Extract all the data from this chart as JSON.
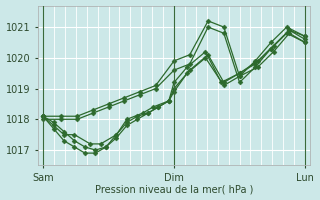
{
  "title": "",
  "xlabel": "Pression niveau de la mer( hPa )",
  "ylabel": "",
  "bg_color": "#cce8e8",
  "plot_bg_color": "#cce8e8",
  "grid_color": "#ffffff",
  "line_color": "#2d6a2d",
  "marker_color": "#2d6a2d",
  "ylim": [
    1016.5,
    1021.7
  ],
  "yticks": [
    1017,
    1018,
    1019,
    1020,
    1021
  ],
  "xtick_labels": [
    "Sam",
    "Dim",
    "Lun"
  ],
  "xtick_positions": [
    0.0,
    0.5,
    1.0
  ],
  "vline_positions": [
    0.0,
    0.5,
    1.0
  ],
  "series": [
    {
      "x": [
        0.0,
        0.07,
        0.13,
        0.19,
        0.25,
        0.31,
        0.37,
        0.43,
        0.5,
        0.56,
        0.63,
        0.69,
        0.75,
        0.81,
        0.87,
        0.93,
        1.0
      ],
      "y": [
        1018.1,
        1018.1,
        1018.1,
        1018.3,
        1018.5,
        1018.7,
        1018.9,
        1019.1,
        1019.9,
        1020.1,
        1021.2,
        1021.0,
        1019.4,
        1019.9,
        1020.5,
        1021.0,
        1020.7
      ]
    },
    {
      "x": [
        0.0,
        0.07,
        0.13,
        0.19,
        0.25,
        0.31,
        0.37,
        0.43,
        0.5,
        0.56,
        0.63,
        0.69,
        0.75,
        0.81,
        0.87,
        0.93,
        1.0
      ],
      "y": [
        1018.0,
        1018.0,
        1018.0,
        1018.2,
        1018.4,
        1018.6,
        1018.8,
        1019.0,
        1019.6,
        1019.8,
        1021.0,
        1020.8,
        1019.2,
        1019.7,
        1020.3,
        1020.8,
        1020.5
      ]
    },
    {
      "x": [
        0.0,
        0.04,
        0.08,
        0.12,
        0.18,
        0.22,
        0.28,
        0.32,
        0.38,
        0.42,
        0.48,
        0.5,
        0.55,
        0.62,
        0.68,
        0.75,
        0.82,
        0.88,
        0.94,
        1.0
      ],
      "y": [
        1018.1,
        1017.8,
        1017.5,
        1017.5,
        1017.2,
        1017.2,
        1017.5,
        1018.0,
        1018.2,
        1018.4,
        1018.6,
        1019.2,
        1019.7,
        1020.2,
        1019.2,
        1019.5,
        1019.9,
        1020.4,
        1020.9,
        1020.7
      ]
    },
    {
      "x": [
        0.0,
        0.04,
        0.08,
        0.12,
        0.16,
        0.2,
        0.24,
        0.28,
        0.32,
        0.36,
        0.4,
        0.44,
        0.48,
        0.5,
        0.56,
        0.63,
        0.69,
        0.75,
        0.81,
        0.87,
        0.94,
        1.0
      ],
      "y": [
        1018.1,
        1017.9,
        1017.6,
        1017.3,
        1017.1,
        1017.0,
        1017.1,
        1017.4,
        1017.8,
        1018.0,
        1018.2,
        1018.4,
        1018.6,
        1019.0,
        1019.6,
        1020.1,
        1019.2,
        1019.5,
        1019.8,
        1020.3,
        1020.9,
        1020.6
      ]
    },
    {
      "x": [
        0.0,
        0.04,
        0.08,
        0.12,
        0.16,
        0.2,
        0.24,
        0.28,
        0.32,
        0.36,
        0.4,
        0.44,
        0.48,
        0.5,
        0.55,
        0.62,
        0.69,
        0.75,
        0.82,
        0.88,
        0.94,
        1.0
      ],
      "y": [
        1018.1,
        1017.7,
        1017.3,
        1017.1,
        1016.9,
        1016.9,
        1017.1,
        1017.5,
        1017.9,
        1018.1,
        1018.2,
        1018.4,
        1018.6,
        1018.9,
        1019.5,
        1020.0,
        1019.1,
        1019.4,
        1019.7,
        1020.2,
        1020.8,
        1020.5
      ]
    }
  ],
  "marker": "D",
  "markersize": 2.5,
  "linewidth": 0.9
}
